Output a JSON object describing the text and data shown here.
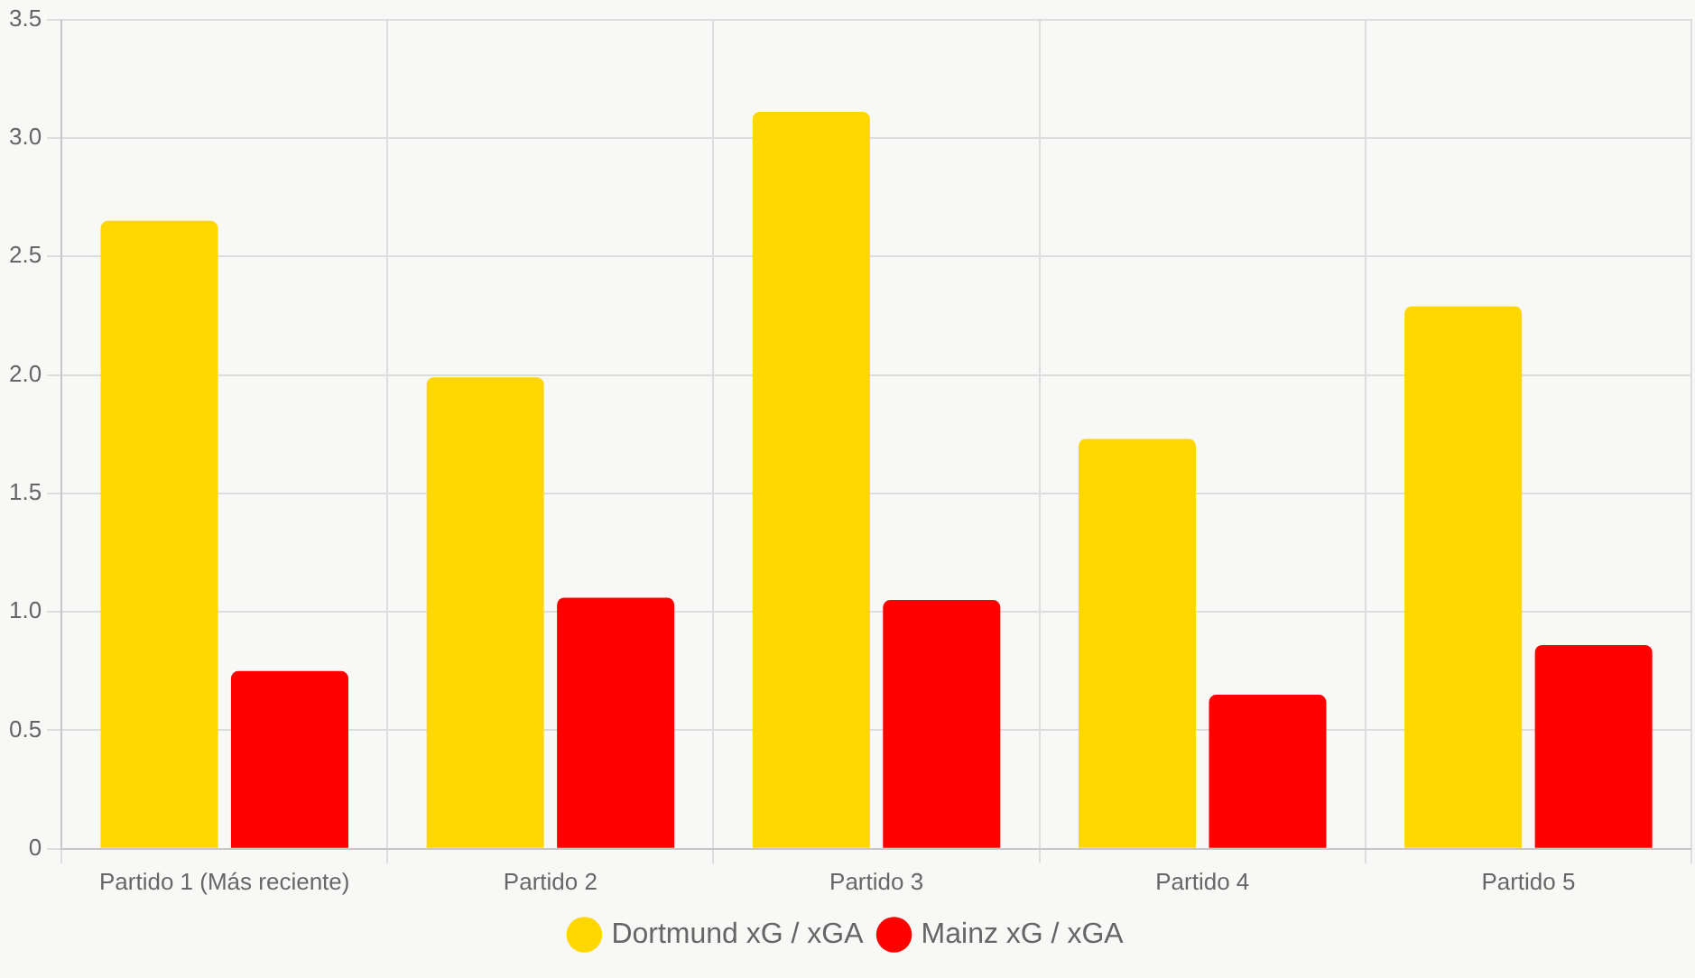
{
  "chart_data": {
    "type": "bar",
    "categories": [
      "Partido 1 (Más reciente)",
      "Partido 2",
      "Partido 3",
      "Partido 4",
      "Partido 5"
    ],
    "series": [
      {
        "name": "Dortmund xG / xGA",
        "color": "#ffd700",
        "values": [
          2.65,
          1.99,
          3.11,
          1.73,
          2.29
        ]
      },
      {
        "name": "Mainz xG / xGA",
        "color": "#ff0000",
        "values": [
          0.75,
          1.06,
          1.05,
          0.65,
          0.86
        ]
      }
    ],
    "ylim": [
      0,
      3.5
    ],
    "yticks": [
      {
        "value": 0,
        "label": "0"
      },
      {
        "value": 0.5,
        "label": "0.5"
      },
      {
        "value": 1,
        "label": "1.0"
      },
      {
        "value": 1.5,
        "label": "1.5"
      },
      {
        "value": 2,
        "label": "2.0"
      },
      {
        "value": 2.5,
        "label": "2.5"
      },
      {
        "value": 3,
        "label": "3.0"
      },
      {
        "value": 3.5,
        "label": "3.5"
      }
    ],
    "grid": true,
    "legend": "bottom"
  }
}
